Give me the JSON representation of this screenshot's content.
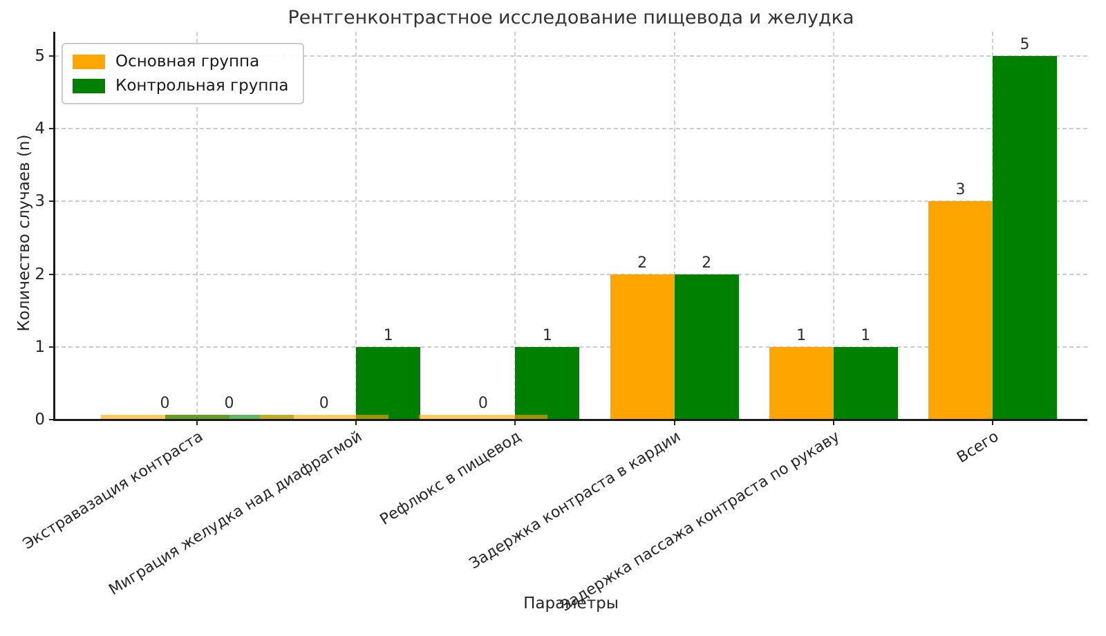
{
  "chart_data": {
    "type": "bar",
    "title": "Рентгенконтрастное исследование пищевода и желудка",
    "xlabel": "Параметры",
    "ylabel": "Количество случаев (n)",
    "categories": [
      "Экстравазация контраста",
      "Миграция желудка над диафрагмой",
      "Рефлюкс в пищевод",
      "Задержка контраста в кардии",
      "Задержка пассажа контраста по рукаву",
      "Всего"
    ],
    "series": [
      {
        "name": "Основная группа",
        "color": "#FFA500",
        "values": [
          0,
          0,
          0,
          2,
          1,
          3
        ]
      },
      {
        "name": "Контрольная группа",
        "color": "#008000",
        "values": [
          0,
          1,
          1,
          2,
          1,
          5
        ]
      }
    ],
    "yticks": [
      0,
      1,
      2,
      3,
      4,
      5
    ],
    "ylim": [
      0,
      5
    ],
    "grid": "dashed both axes",
    "legend_position": "upper-left",
    "value_labels": true,
    "zero_value_marker": "thin translucent double-width stub at baseline"
  }
}
